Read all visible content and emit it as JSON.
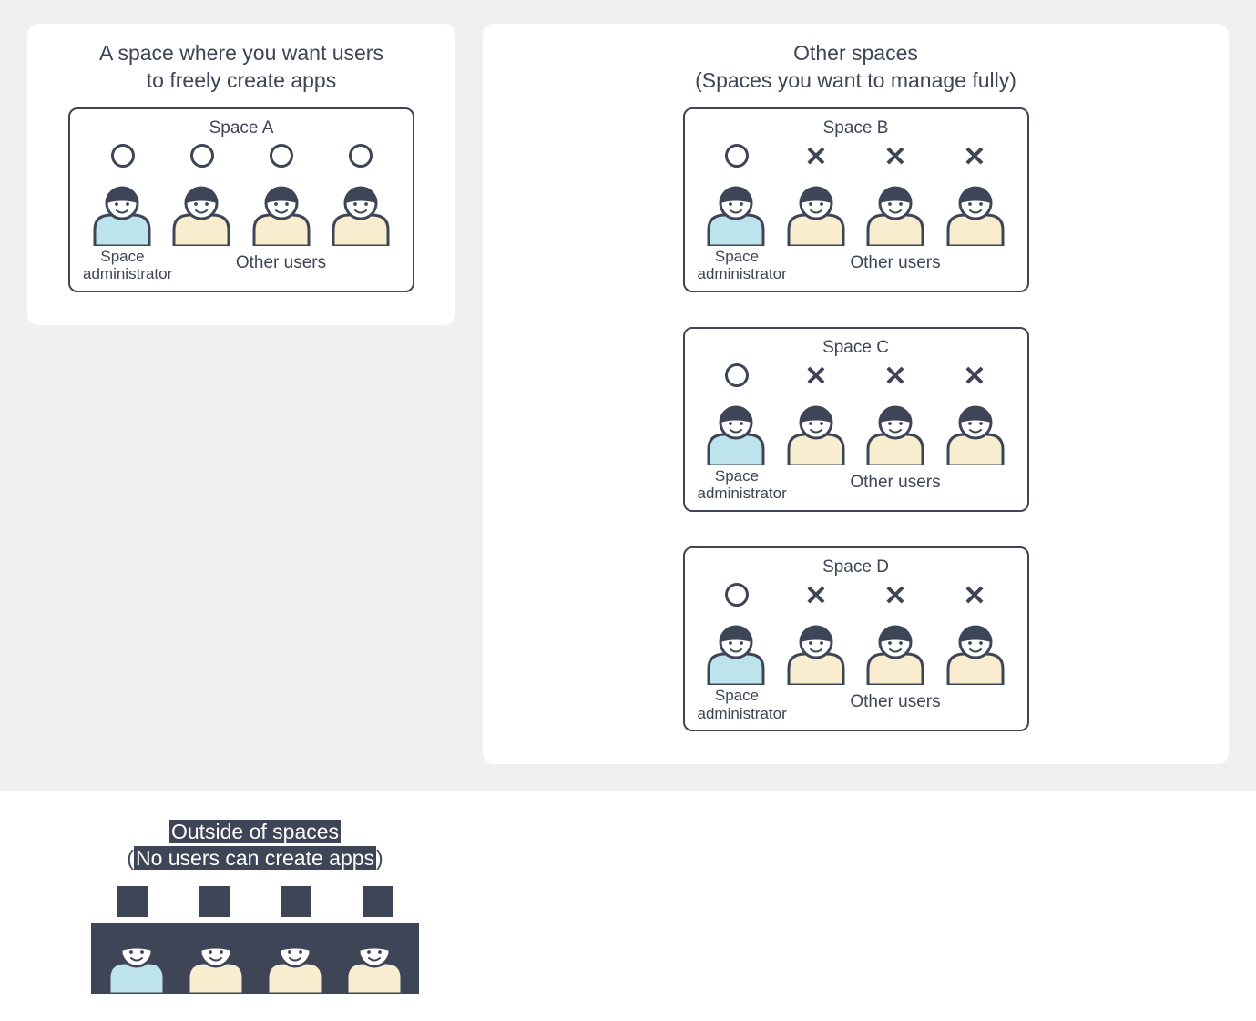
{
  "colors": {
    "text": "#3d4556",
    "outline": "#3d4556",
    "admin_fill": "#bde4ed",
    "user_fill": "#f8edce",
    "face_fill": "#ffffff",
    "panel_bg": "#ffffff",
    "upper_bg": "#f0f0f0",
    "dark_block": "#3d4556"
  },
  "left_panel": {
    "title_line1": "A space where you want users",
    "title_line2": "to freely create apps",
    "space": {
      "name": "Space A",
      "people": [
        {
          "role": "admin",
          "mark": "O"
        },
        {
          "role": "user",
          "mark": "O"
        },
        {
          "role": "user",
          "mark": "O"
        },
        {
          "role": "user",
          "mark": "O"
        }
      ],
      "admin_label": "Space administrator",
      "others_label": "Other users"
    }
  },
  "right_panel": {
    "title_line1": "Other spaces",
    "title_line2": "(Spaces you want to manage fully)",
    "spaces": [
      {
        "name": "Space B",
        "people": [
          {
            "role": "admin",
            "mark": "O"
          },
          {
            "role": "user",
            "mark": "X"
          },
          {
            "role": "user",
            "mark": "X"
          },
          {
            "role": "user",
            "mark": "X"
          }
        ],
        "admin_label": "Space administrator",
        "others_label": "Other users"
      },
      {
        "name": "Space C",
        "people": [
          {
            "role": "admin",
            "mark": "O"
          },
          {
            "role": "user",
            "mark": "X"
          },
          {
            "role": "user",
            "mark": "X"
          },
          {
            "role": "user",
            "mark": "X"
          }
        ],
        "admin_label": "Space administrator",
        "others_label": "Other users"
      },
      {
        "name": "Space D",
        "people": [
          {
            "role": "admin",
            "mark": "O"
          },
          {
            "role": "user",
            "mark": "X"
          },
          {
            "role": "user",
            "mark": "X"
          },
          {
            "role": "user",
            "mark": "X"
          }
        ],
        "admin_label": "Space administrator",
        "others_label": "Other users"
      }
    ]
  },
  "outside": {
    "title_line1": "Outside of spaces",
    "title_line2_pre": "(",
    "title_line2_mid": "No users can create apps",
    "title_line2_post": ")",
    "people": [
      {
        "role": "admin"
      },
      {
        "role": "user"
      },
      {
        "role": "user"
      },
      {
        "role": "user"
      }
    ]
  },
  "style": {
    "title_fontsize": 23,
    "space_name_fontsize": 19,
    "role_fontsize": 18,
    "person_width": 78,
    "person_height": 78,
    "stroke_width": 3
  }
}
